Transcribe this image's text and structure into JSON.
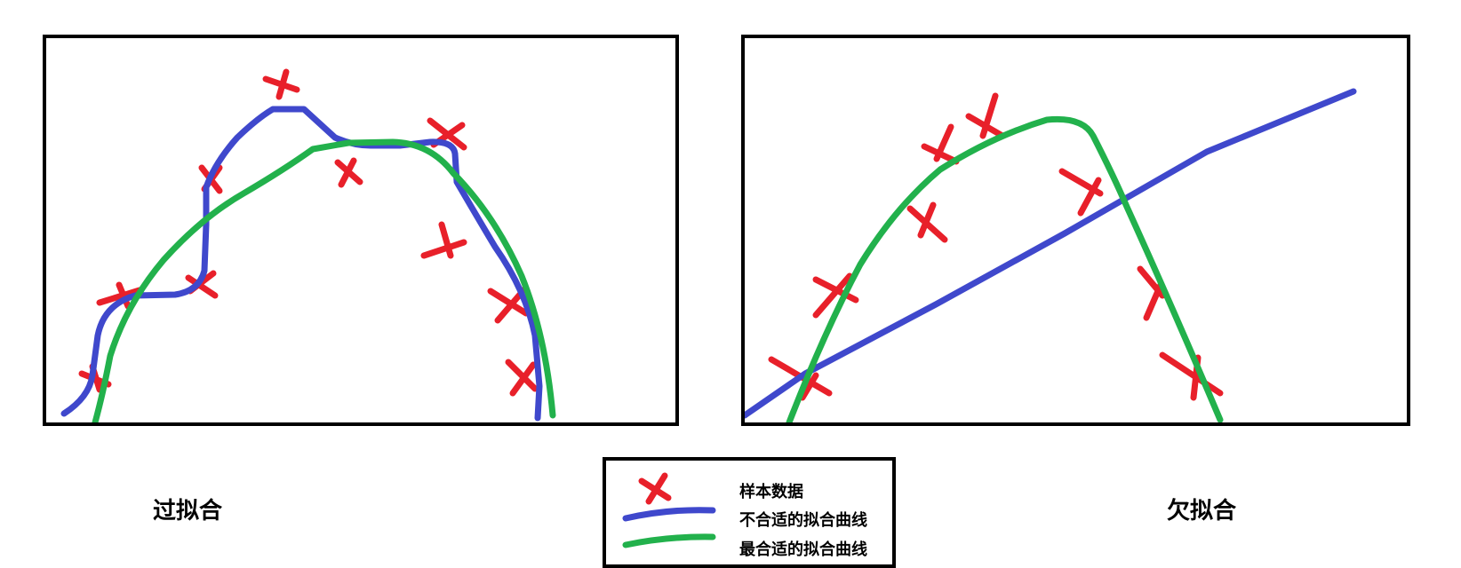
{
  "captions": {
    "left": "过拟合",
    "right": "欠拟合"
  },
  "legend": {
    "sample": "样本数据",
    "bad_fit": "不合适的拟合曲线",
    "best_fit": "最合适的拟合曲线"
  },
  "colors": {
    "sample": "#e8202a",
    "bad_fit": "#3f48cc",
    "best_fit": "#22b14c"
  }
}
